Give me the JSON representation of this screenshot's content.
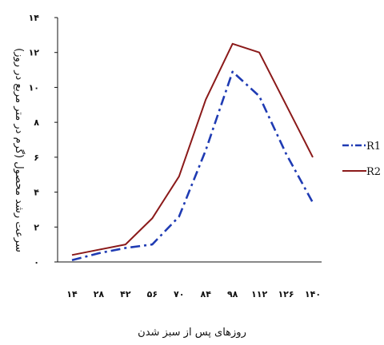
{
  "chart_data": {
    "type": "line",
    "title": "",
    "xlabel": "روزهای پس از سبز شدن",
    "ylabel": "سرعت رشد محصول (گرم در متر مربع در روز)",
    "x": [
      14,
      28,
      42,
      56,
      70,
      84,
      98,
      112,
      126,
      140
    ],
    "x_tick_labels": [
      "۱۴",
      "۲۸",
      "۴۲",
      "۵۶",
      "۷۰",
      "۸۴",
      "۹۸",
      "۱۱۲",
      "۱۲۶",
      "۱۴۰"
    ],
    "y_tick_values": [
      0,
      2,
      4,
      6,
      8,
      10,
      12,
      14
    ],
    "y_tick_labels": [
      "۰",
      "۲",
      "۴",
      "۶",
      "۸",
      "۱۰",
      "۱۲",
      "۱۴"
    ],
    "ylim": [
      0,
      14
    ],
    "grid": false,
    "legend_position": "right",
    "series": [
      {
        "name": "R1",
        "color": "#1f3bb3",
        "dash": "dash-dot",
        "values": [
          0.1,
          0.5,
          0.8,
          1.0,
          2.6,
          6.4,
          10.9,
          9.5,
          6.2,
          3.4
        ]
      },
      {
        "name": "R2",
        "color": "#8b1a1a",
        "dash": "solid",
        "values": [
          0.4,
          0.7,
          1.0,
          2.5,
          4.9,
          9.3,
          12.5,
          12.0,
          9.0,
          6.0
        ]
      }
    ]
  }
}
